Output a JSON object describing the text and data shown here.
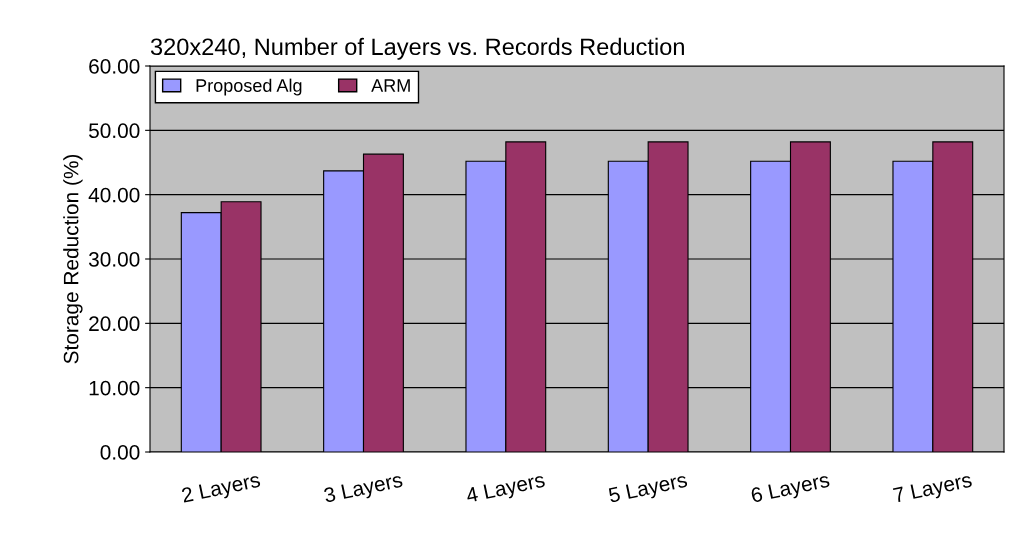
{
  "chart_data": {
    "type": "bar",
    "title": "320x240, Number of Layers vs. Records Reduction",
    "ylabel": "Storage Reduction (%)",
    "categories": [
      "2 Layers",
      "3 Layers",
      "4 Layers",
      "5 Layers",
      "6 Layers",
      "7 Layers"
    ],
    "series": [
      {
        "name": "Proposed Alg",
        "color": "#9999ff",
        "values": [
          37.2,
          43.7,
          45.2,
          45.2,
          45.2,
          45.2
        ]
      },
      {
        "name": "ARM",
        "color": "#993366",
        "values": [
          38.9,
          46.3,
          48.2,
          48.2,
          48.2,
          48.2
        ]
      }
    ],
    "ylim": [
      0,
      60
    ],
    "yticks": [
      {
        "value": 0,
        "label": "0.00"
      },
      {
        "value": 10,
        "label": "10.00"
      },
      {
        "value": 20,
        "label": "20.00"
      },
      {
        "value": 30,
        "label": "30.00"
      },
      {
        "value": 40,
        "label": "40.00"
      },
      {
        "value": 50,
        "label": "50.00"
      },
      {
        "value": 60,
        "label": "60.00"
      }
    ],
    "grid": "y",
    "legend": "top left"
  }
}
